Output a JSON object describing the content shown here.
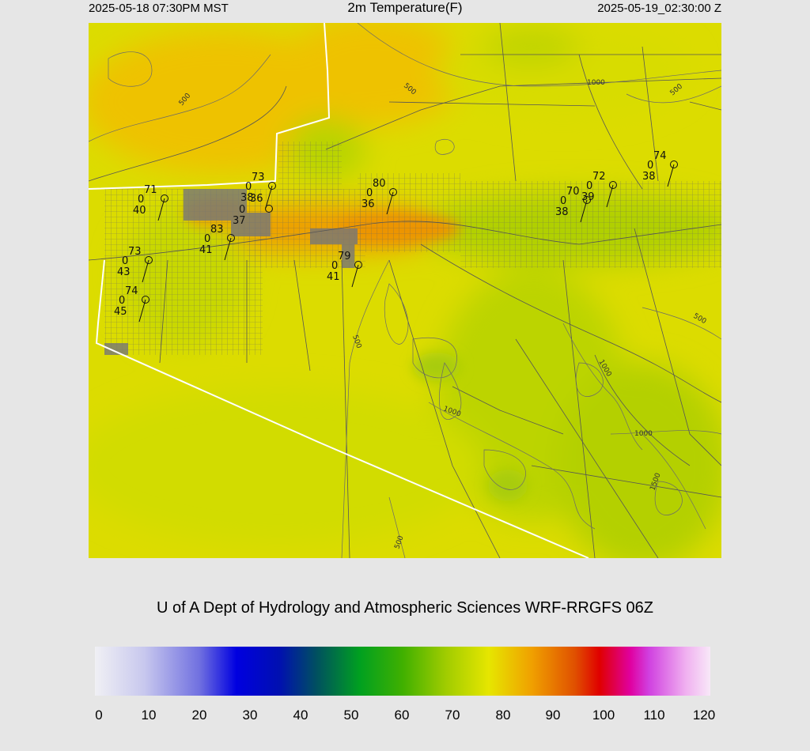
{
  "header": {
    "local_time": "2025-05-18 07:30PM MST",
    "title": "2m Temperature(F)",
    "utc_time": "2025-05-19_02:30:00 Z"
  },
  "credit": "U of A Dept of Hydrology and Atmospheric Sciences WRF-RRGFS 06Z",
  "colorbar": {
    "ticks": [
      "0",
      "10",
      "20",
      "30",
      "40",
      "50",
      "60",
      "70",
      "80",
      "90",
      "100",
      "110",
      "120"
    ]
  },
  "contour_labels": [
    "500",
    "500",
    "1000",
    "500",
    "500",
    "500",
    "1000",
    "1000",
    "1000",
    "1500",
    "500"
  ],
  "stations": [
    {
      "temp": "71",
      "gust": "0",
      "dew": "40"
    },
    {
      "temp": "73",
      "gust": "0",
      "dew": "43"
    },
    {
      "temp": "74",
      "gust": "0",
      "dew": "45"
    },
    {
      "temp": "73",
      "gust": "0",
      "dew": "38"
    },
    {
      "temp": "83",
      "gust": "0",
      "dew": "41"
    },
    {
      "temp": "79",
      "gust": "0",
      "dew": "41"
    },
    {
      "temp": "80",
      "gust": "0",
      "dew": "36"
    },
    {
      "temp": "70",
      "gust": "0",
      "dew": "38"
    },
    {
      "temp": "72",
      "gust": "0",
      "dew": "39"
    },
    {
      "temp": "74",
      "gust": "0",
      "dew": "38"
    }
  ],
  "station_extra": {
    "temp": "37",
    "gust": "0",
    "dew": "36"
  },
  "colors": {
    "background": "#e6e6e6",
    "map_base": "#e2e000",
    "warm": "#ecb800",
    "cool": "#a8d000",
    "border": "#ffffff",
    "roads": "#555555"
  }
}
